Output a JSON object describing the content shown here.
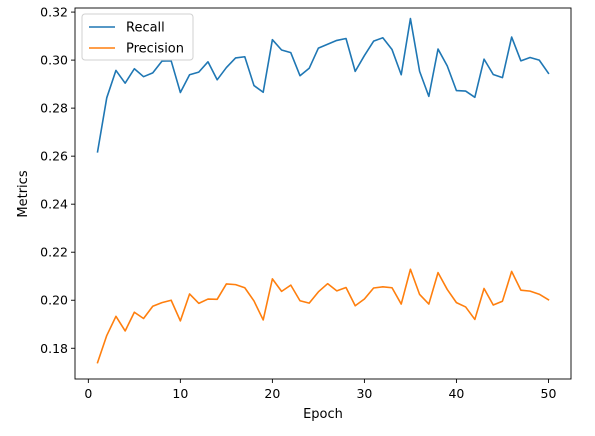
{
  "chart_data": {
    "type": "line",
    "title": "",
    "xlabel": "Epoch",
    "ylabel": "Metrics",
    "xlim": [
      -1.45,
      52.45
    ],
    "ylim": [
      0.1672,
      0.3217
    ],
    "xticks": [
      0,
      10,
      20,
      30,
      40,
      50
    ],
    "yticks": [
      0.18,
      0.2,
      0.22,
      0.24,
      0.26,
      0.28,
      0.3,
      0.32
    ],
    "xtick_labels": [
      "0",
      "10",
      "20",
      "30",
      "40",
      "50"
    ],
    "ytick_labels": [
      "0.18",
      "0.20",
      "0.22",
      "0.24",
      "0.26",
      "0.28",
      "0.30",
      "0.32"
    ],
    "grid": false,
    "legend_position": "top-left",
    "x": [
      1,
      2,
      3,
      4,
      5,
      6,
      7,
      8,
      9,
      10,
      11,
      12,
      13,
      14,
      15,
      16,
      17,
      18,
      19,
      20,
      21,
      22,
      23,
      24,
      25,
      26,
      27,
      28,
      29,
      30,
      31,
      32,
      33,
      34,
      35,
      36,
      37,
      38,
      39,
      40,
      41,
      42,
      43,
      44,
      45,
      46,
      47,
      48,
      49,
      50
    ],
    "series": [
      {
        "name": "Recall",
        "color": "#1f77b4",
        "values": [
          0.2618,
          0.2843,
          0.2957,
          0.2904,
          0.2964,
          0.2931,
          0.2947,
          0.2996,
          0.2997,
          0.2865,
          0.2939,
          0.295,
          0.2993,
          0.2918,
          0.2969,
          0.3009,
          0.3014,
          0.2894,
          0.2866,
          0.3085,
          0.3042,
          0.3031,
          0.2935,
          0.2966,
          0.305,
          0.3066,
          0.3082,
          0.309,
          0.2953,
          0.3019,
          0.3079,
          0.3093,
          0.3044,
          0.2939,
          0.3173,
          0.2953,
          0.2849,
          0.3046,
          0.2976,
          0.2873,
          0.2871,
          0.2845,
          0.3004,
          0.294,
          0.2927,
          0.3096,
          0.2997,
          0.3011,
          0.3,
          0.2945
        ]
      },
      {
        "name": "Precision",
        "color": "#ff7f0e",
        "values": [
          0.174,
          0.1853,
          0.1933,
          0.1872,
          0.195,
          0.1924,
          0.1975,
          0.199,
          0.2,
          0.1914,
          0.2026,
          0.1987,
          0.2005,
          0.2004,
          0.2068,
          0.2065,
          0.2052,
          0.1997,
          0.1918,
          0.2089,
          0.2037,
          0.2063,
          0.1998,
          0.1988,
          0.2035,
          0.2069,
          0.2039,
          0.2053,
          0.1977,
          0.2005,
          0.2051,
          0.2056,
          0.2052,
          0.1984,
          0.2129,
          0.2024,
          0.1984,
          0.2115,
          0.2045,
          0.199,
          0.1972,
          0.192,
          0.2049,
          0.198,
          0.1996,
          0.212,
          0.2042,
          0.2038,
          0.2025,
          0.2002
        ]
      }
    ]
  }
}
